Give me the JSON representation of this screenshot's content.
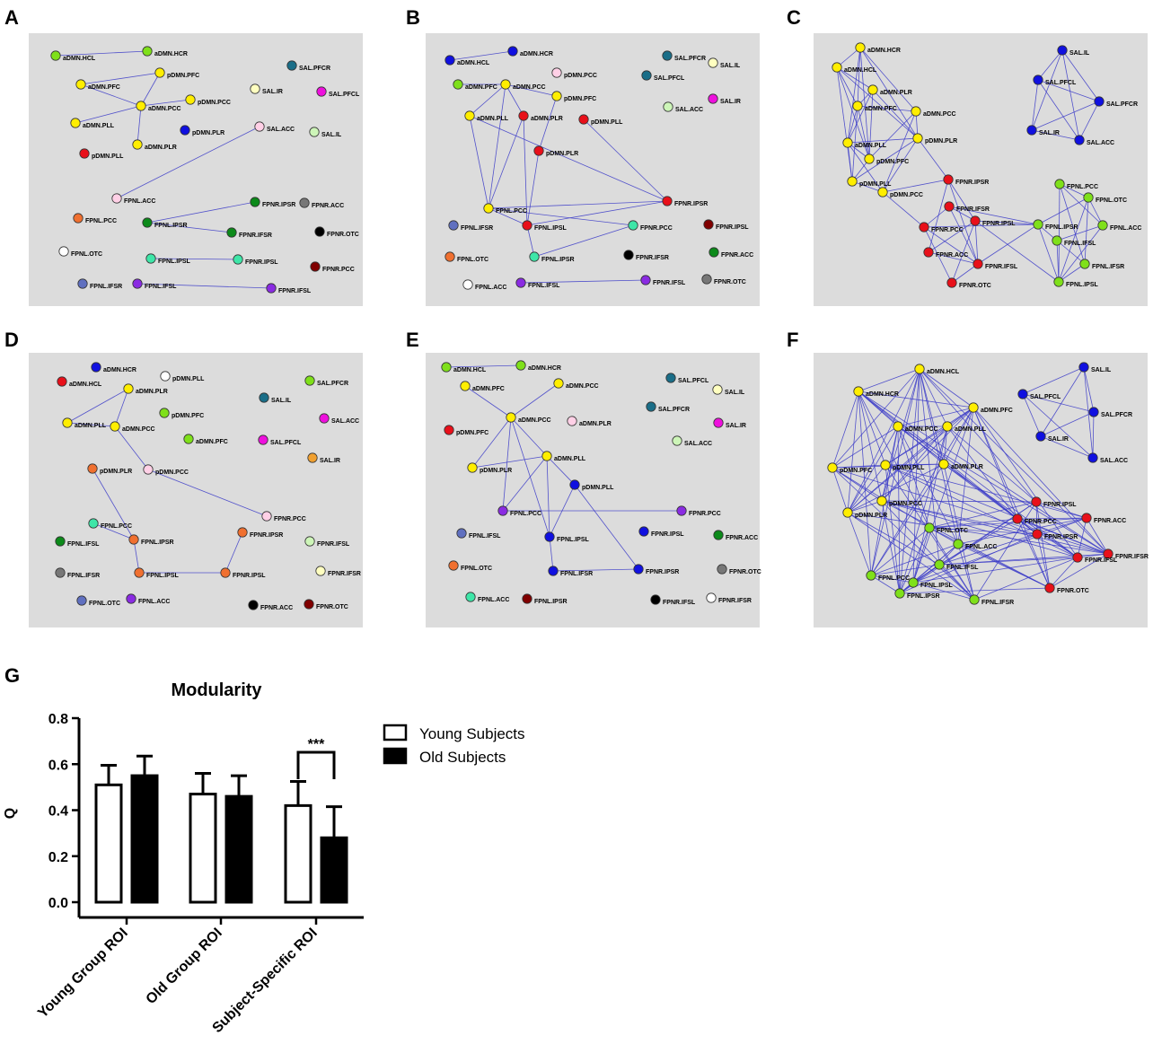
{
  "panels": [
    {
      "letter": "A",
      "nodes": [
        {
          "label": "aDMN.HCL",
          "color": "#7fe01a"
        },
        {
          "label": "aDMN.HCR",
          "color": "#7fe01a"
        },
        {
          "label": "pDMN.PFC",
          "color": "#ffee00"
        },
        {
          "label": "aDMN.PFC",
          "color": "#ffee00"
        },
        {
          "label": "pDMN.PCC",
          "color": "#ffee00"
        },
        {
          "label": "aDMN.PCC",
          "color": "#ffee00"
        },
        {
          "label": "aDMN.PLL",
          "color": "#ffee00"
        },
        {
          "label": "aDMN.PLR",
          "color": "#ffee00"
        },
        {
          "label": "pDMN.PLR",
          "color": "#1010e0"
        },
        {
          "label": "pDMN.PLL",
          "color": "#e8101a"
        },
        {
          "label": "SAL.PFCR",
          "color": "#1a6e88"
        },
        {
          "label": "SAL.IR",
          "color": "#ffffc0"
        },
        {
          "label": "SAL.PFCL",
          "color": "#ee10dd"
        },
        {
          "label": "SAL.ACC",
          "color": "#ffd0e6"
        },
        {
          "label": "SAL.IL",
          "color": "#cdf5b8"
        },
        {
          "label": "FPNL.ACC",
          "color": "#ffd0e6"
        },
        {
          "label": "FPNL.PCC",
          "color": "#f07030"
        },
        {
          "label": "FPNL.IPSR",
          "color": "#0c8a1a"
        },
        {
          "label": "FPNR.IPSR",
          "color": "#0c8a1a"
        },
        {
          "label": "FPNR.ACC",
          "color": "#777777"
        },
        {
          "label": "FPNR.IFSR",
          "color": "#0c8a1a"
        },
        {
          "label": "FPNR.OTC",
          "color": "#000000"
        },
        {
          "label": "FPNL.OTC",
          "color": "#ffffff"
        },
        {
          "label": "FPNL.IPSL",
          "color": "#3ee6a8"
        },
        {
          "label": "FPNR.IPSL",
          "color": "#3ee6a8"
        },
        {
          "label": "FPNR.PCC",
          "color": "#800000"
        },
        {
          "label": "FPNL.IFSR",
          "color": "#6070c0"
        },
        {
          "label": "FPNL.IFSL",
          "color": "#8a2be2"
        },
        {
          "label": "FPNR.IFSL",
          "color": "#8a2be2"
        }
      ]
    },
    {
      "letter": "B",
      "nodes": [
        {
          "label": "aDMN.HCL",
          "color": "#1010e0"
        },
        {
          "label": "aDMN.HCR",
          "color": "#1010e0"
        },
        {
          "label": "pDMN.PCC",
          "color": "#ffd0e6"
        },
        {
          "label": "aDMN.PFC",
          "color": "#7fe01a"
        },
        {
          "label": "aDMN.PCC",
          "color": "#ffee00"
        },
        {
          "label": "pDMN.PFC",
          "color": "#ffee00"
        },
        {
          "label": "aDMN.PLL",
          "color": "#ffee00"
        },
        {
          "label": "aDMN.PLR",
          "color": "#e8101a"
        },
        {
          "label": "pDMN.PLL",
          "color": "#e8101a"
        },
        {
          "label": "pDMN.PLR",
          "color": "#e8101a"
        },
        {
          "label": "SAL.PFCR",
          "color": "#1a6e88"
        },
        {
          "label": "SAL.IL",
          "color": "#ffffc0"
        },
        {
          "label": "SAL.PFCL",
          "color": "#1a6e88"
        },
        {
          "label": "SAL.IR",
          "color": "#ee10dd"
        },
        {
          "label": "SAL.ACC",
          "color": "#cdf5b8"
        },
        {
          "label": "FPNL.PCC",
          "color": "#ffee00"
        },
        {
          "label": "FPNR.IPSR",
          "color": "#e8101a"
        },
        {
          "label": "FPNL.IFSR",
          "color": "#6070c0"
        },
        {
          "label": "FPNL.IPSL",
          "color": "#e8101a"
        },
        {
          "label": "FPNR.PCC",
          "color": "#3ee6a8"
        },
        {
          "label": "FPNR.IPSL",
          "color": "#800000"
        },
        {
          "label": "FPNL.OTC",
          "color": "#f07030"
        },
        {
          "label": "FPNL.IPSR",
          "color": "#3ee6a8"
        },
        {
          "label": "FPNR.IFSR",
          "color": "#000000"
        },
        {
          "label": "FPNR.ACC",
          "color": "#0c8a1a"
        },
        {
          "label": "FPNL.ACC",
          "color": "#ffffff"
        },
        {
          "label": "FPNL.IFSL",
          "color": "#8a2be2"
        },
        {
          "label": "FPNR.IFSL",
          "color": "#8a2be2"
        },
        {
          "label": "FPNR.OTC",
          "color": "#777777"
        }
      ]
    },
    {
      "letter": "C",
      "nodes": [
        {
          "label": "aDMN.HCR",
          "color": "#ffee00"
        },
        {
          "label": "aDMN.HCL",
          "color": "#ffee00"
        },
        {
          "label": "aDMN.PLR",
          "color": "#ffee00"
        },
        {
          "label": "aDMN.PFC",
          "color": "#ffee00"
        },
        {
          "label": "aDMN.PCC",
          "color": "#ffee00"
        },
        {
          "label": "aDMN.PLL",
          "color": "#ffee00"
        },
        {
          "label": "pDMN.PLR",
          "color": "#ffee00"
        },
        {
          "label": "pDMN.PFC",
          "color": "#ffee00"
        },
        {
          "label": "pDMN.PLL",
          "color": "#ffee00"
        },
        {
          "label": "pDMN.PCC",
          "color": "#ffee00"
        },
        {
          "label": "SAL.IL",
          "color": "#1010e0"
        },
        {
          "label": "SAL.PFCL",
          "color": "#1010e0"
        },
        {
          "label": "SAL.PFCR",
          "color": "#1010e0"
        },
        {
          "label": "SAL.IR",
          "color": "#1010e0"
        },
        {
          "label": "SAL.ACC",
          "color": "#1010e0"
        },
        {
          "label": "FPNR.IPSR",
          "color": "#e8101a"
        },
        {
          "label": "FPNR.IFSR",
          "color": "#e8101a"
        },
        {
          "label": "FPNR.PCC",
          "color": "#e8101a"
        },
        {
          "label": "FPNR.IPSL",
          "color": "#e8101a"
        },
        {
          "label": "FPNR.ACC",
          "color": "#e8101a"
        },
        {
          "label": "FPNR.IFSL",
          "color": "#e8101a"
        },
        {
          "label": "FPNR.OTC",
          "color": "#e8101a"
        },
        {
          "label": "FPNL.PCC",
          "color": "#7fe01a"
        },
        {
          "label": "FPNL.OTC",
          "color": "#7fe01a"
        },
        {
          "label": "FPNL.IPSR",
          "color": "#7fe01a"
        },
        {
          "label": "FPNL.ACC",
          "color": "#7fe01a"
        },
        {
          "label": "FPNL.IFSL",
          "color": "#7fe01a"
        },
        {
          "label": "FPNL.IFSR",
          "color": "#7fe01a"
        },
        {
          "label": "FPNL.IPSL",
          "color": "#7fe01a"
        }
      ]
    },
    {
      "letter": "D",
      "nodes": [
        {
          "label": "aDMN.HCR",
          "color": "#1010e0"
        },
        {
          "label": "aDMN.HCL",
          "color": "#e8101a"
        },
        {
          "label": "pDMN.PLL",
          "color": "#ffffff"
        },
        {
          "label": "aDMN.PLR",
          "color": "#ffee00"
        },
        {
          "label": "pDMN.PFC",
          "color": "#7fe01a"
        },
        {
          "label": "aDMN.PLL",
          "color": "#ffee00"
        },
        {
          "label": "aDMN.PCC",
          "color": "#ffee00"
        },
        {
          "label": "aDMN.PFC",
          "color": "#7fe01a"
        },
        {
          "label": "pDMN.PLR",
          "color": "#f07030"
        },
        {
          "label": "pDMN.PCC",
          "color": "#ffd0e6"
        },
        {
          "label": "SAL.PFCR",
          "color": "#7fe01a"
        },
        {
          "label": "SAL.IL",
          "color": "#1a6e88"
        },
        {
          "label": "SAL.ACC",
          "color": "#ee10dd"
        },
        {
          "label": "SAL.PFCL",
          "color": "#ee10dd"
        },
        {
          "label": "SAL.IR",
          "color": "#f0a030"
        },
        {
          "label": "FPNR.PCC",
          "color": "#ffd0e6"
        },
        {
          "label": "FPNL.PCC",
          "color": "#3ee6a8"
        },
        {
          "label": "FPNL.IFSL",
          "color": "#0c8a1a"
        },
        {
          "label": "FPNL.IPSR",
          "color": "#f07030"
        },
        {
          "label": "FPNR.IPSR",
          "color": "#f07030"
        },
        {
          "label": "FPNR.IFSL",
          "color": "#cdf5b8"
        },
        {
          "label": "FPNL.IFSR",
          "color": "#777777"
        },
        {
          "label": "FPNL.IPSL",
          "color": "#f07030"
        },
        {
          "label": "FPNR.IPSL",
          "color": "#f07030"
        },
        {
          "label": "FPNR.IFSR",
          "color": "#ffffc0"
        },
        {
          "label": "FPNL.OTC",
          "color": "#6070c0"
        },
        {
          "label": "FPNL.ACC",
          "color": "#8a2be2"
        },
        {
          "label": "FPNR.ACC",
          "color": "#000000"
        },
        {
          "label": "FPNR.OTC",
          "color": "#800000"
        }
      ]
    },
    {
      "letter": "E",
      "nodes": [
        {
          "label": "aDMN.HCL",
          "color": "#7fe01a"
        },
        {
          "label": "aDMN.HCR",
          "color": "#7fe01a"
        },
        {
          "label": "aDMN.PFC",
          "color": "#ffee00"
        },
        {
          "label": "aDMN.PCC",
          "color": "#ffee00"
        },
        {
          "label": "aDMN.PCC",
          "color": "#ffee00"
        },
        {
          "label": "aDMN.PLR",
          "color": "#ffd0e6"
        },
        {
          "label": "pDMN.PFC",
          "color": "#e8101a"
        },
        {
          "label": "pDMN.PLR",
          "color": "#ffee00"
        },
        {
          "label": "aDMN.PLL",
          "color": "#ffee00"
        },
        {
          "label": "pDMN.PLL",
          "color": "#1010e0"
        },
        {
          "label": "SAL.PFCL",
          "color": "#1a6e88"
        },
        {
          "label": "SAL.IL",
          "color": "#ffffc0"
        },
        {
          "label": "SAL.PFCR",
          "color": "#1a6e88"
        },
        {
          "label": "SAL.IR",
          "color": "#ee10dd"
        },
        {
          "label": "SAL.ACC",
          "color": "#cdf5b8"
        },
        {
          "label": "FPNL.PCC",
          "color": "#8a2be2"
        },
        {
          "label": "FPNR.PCC",
          "color": "#8a2be2"
        },
        {
          "label": "FPNL.IPSL",
          "color": "#1010e0"
        },
        {
          "label": "FPNR.IPSL",
          "color": "#1010e0"
        },
        {
          "label": "FPNR.ACC",
          "color": "#0c8a1a"
        },
        {
          "label": "FPNL.IFSL",
          "color": "#6070c0"
        },
        {
          "label": "FPNL.OTC",
          "color": "#f07030"
        },
        {
          "label": "FPNL.IFSR",
          "color": "#1010e0"
        },
        {
          "label": "FPNR.IPSR",
          "color": "#1010e0"
        },
        {
          "label": "FPNR.OTC",
          "color": "#777777"
        },
        {
          "label": "FPNL.ACC",
          "color": "#3ee6a8"
        },
        {
          "label": "FPNL.IPSR",
          "color": "#800000"
        },
        {
          "label": "FPNR.IFSL",
          "color": "#000000"
        },
        {
          "label": "FPNR.IFSR",
          "color": "#ffffff"
        }
      ]
    },
    {
      "letter": "F",
      "nodes": [
        {
          "label": "aDMN.HCL",
          "color": "#ffee00"
        },
        {
          "label": "aDMN.HCR",
          "color": "#ffee00"
        },
        {
          "label": "aDMN.PFC",
          "color": "#ffee00"
        },
        {
          "label": "aDMN.PCC",
          "color": "#ffee00"
        },
        {
          "label": "aDMN.PLL",
          "color": "#ffee00"
        },
        {
          "label": "pDMN.PFC",
          "color": "#ffee00"
        },
        {
          "label": "pDMN.PLL",
          "color": "#ffee00"
        },
        {
          "label": "aDMN.PLR",
          "color": "#ffee00"
        },
        {
          "label": "pDMN.PCC",
          "color": "#ffee00"
        },
        {
          "label": "pDMN.PLR",
          "color": "#ffee00"
        },
        {
          "label": "SAL.IL",
          "color": "#1010e0"
        },
        {
          "label": "SAL.PFCL",
          "color": "#1010e0"
        },
        {
          "label": "SAL.PFCR",
          "color": "#1010e0"
        },
        {
          "label": "SAL.IR",
          "color": "#1010e0"
        },
        {
          "label": "SAL.ACC",
          "color": "#1010e0"
        },
        {
          "label": "FPNR.IPSL",
          "color": "#e8101a"
        },
        {
          "label": "FPNR.PCC",
          "color": "#e8101a"
        },
        {
          "label": "FPNR.ACC",
          "color": "#e8101a"
        },
        {
          "label": "FPNR.IPSR",
          "color": "#e8101a"
        },
        {
          "label": "FPNR.IFSR",
          "color": "#e8101a"
        },
        {
          "label": "FPNR.IFSL",
          "color": "#e8101a"
        },
        {
          "label": "FPNR.OTC",
          "color": "#e8101a"
        },
        {
          "label": "FPNL.OTC",
          "color": "#7fe01a"
        },
        {
          "label": "FPNL.ACC",
          "color": "#7fe01a"
        },
        {
          "label": "FPNL.IFSL",
          "color": "#7fe01a"
        },
        {
          "label": "FPNL.PCC",
          "color": "#7fe01a"
        },
        {
          "label": "FPNL.IPSL",
          "color": "#7fe01a"
        },
        {
          "label": "FPNL.IPSR",
          "color": "#7fe01a"
        },
        {
          "label": "FPNL.IFSR",
          "color": "#7fe01a"
        }
      ]
    }
  ],
  "chart_data": {
    "type": "bar",
    "panel_letter": "G",
    "title": "Modularity",
    "ylabel": "Q",
    "xlabel": "",
    "ylim": [
      0,
      0.8
    ],
    "yticks": [
      "0.0",
      "0.2",
      "0.4",
      "0.6",
      "0.8"
    ],
    "categories": [
      "Young Group ROI",
      "Old Group ROI",
      "Subject-Specific ROI"
    ],
    "series": [
      {
        "name": "Young Subjects",
        "fill": "#ffffff",
        "values": [
          0.51,
          0.47,
          0.42
        ],
        "errors": [
          0.085,
          0.09,
          0.105
        ]
      },
      {
        "name": "Old Subjects",
        "fill": "#000000",
        "values": [
          0.55,
          0.46,
          0.28
        ],
        "errors": [
          0.085,
          0.09,
          0.135
        ]
      }
    ],
    "significance": {
      "category_index": 2,
      "label": "***"
    },
    "legend_position": "top-right"
  }
}
